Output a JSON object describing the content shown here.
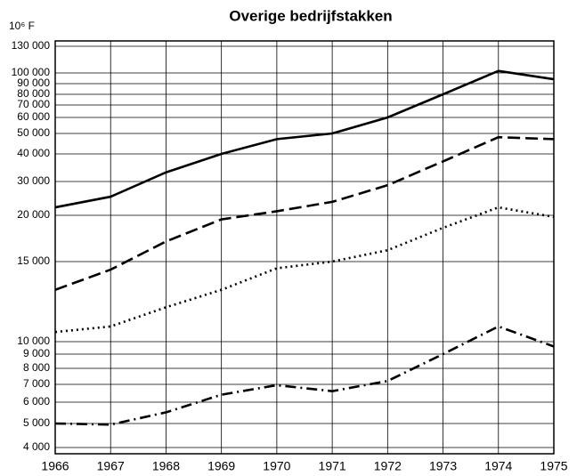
{
  "chart_data": {
    "type": "line",
    "title": "Overige bedrijfstakken",
    "ylabel": "10⁶ F",
    "x": [
      1966,
      1967,
      1968,
      1969,
      1970,
      1971,
      1972,
      1973,
      1974,
      1975
    ],
    "xlim": [
      1966,
      1975
    ],
    "xticks": [
      1966,
      1967,
      1968,
      1969,
      1970,
      1971,
      1972,
      1973,
      1974,
      1975
    ],
    "ylim": [
      4000,
      130000
    ],
    "yscale": "log",
    "grid": true,
    "yticks": [
      {
        "value": 4000,
        "label": "4 000"
      },
      {
        "value": 5000,
        "label": "5 000"
      },
      {
        "value": 6000,
        "label": "6 000"
      },
      {
        "value": 7000,
        "label": "7 000"
      },
      {
        "value": 8000,
        "label": "8 000"
      },
      {
        "value": 9000,
        "label": "9 000"
      },
      {
        "value": 10000,
        "label": "10 000"
      },
      {
        "value": 15000,
        "label": "15 000"
      },
      {
        "value": 20000,
        "label": "20 000"
      },
      {
        "value": 30000,
        "label": "30 000"
      },
      {
        "value": 40000,
        "label": "40 000"
      },
      {
        "value": 50000,
        "label": "50 000"
      },
      {
        "value": 60000,
        "label": "60 000"
      },
      {
        "value": 70000,
        "label": "70 000"
      },
      {
        "value": 80000,
        "label": "80 000"
      },
      {
        "value": 90000,
        "label": "90 000"
      },
      {
        "value": 100000,
        "label": "100 000"
      },
      {
        "value": 130000,
        "label": "130 000"
      }
    ],
    "series": [
      {
        "color": "#000000",
        "style": "solid",
        "values": [
          22000,
          25000,
          33000,
          40000,
          47000,
          50000,
          60000,
          80000,
          102000,
          94000
        ]
      },
      {
        "color": "#000000",
        "style": "dashed",
        "values": [
          13000,
          14400,
          17000,
          19500,
          21000,
          23500,
          28700,
          37000,
          48000,
          47000
        ]
      },
      {
        "color": "#000000",
        "style": "dotted",
        "values": [
          10500,
          10800,
          11900,
          13000,
          14500,
          15000,
          16100,
          18500,
          22000,
          19800
        ]
      },
      {
        "color": "#000000",
        "style": "dashdot",
        "values": [
          5000,
          4950,
          5500,
          6400,
          6950,
          6600,
          7200,
          9000,
          10800,
          9600
        ]
      }
    ]
  }
}
